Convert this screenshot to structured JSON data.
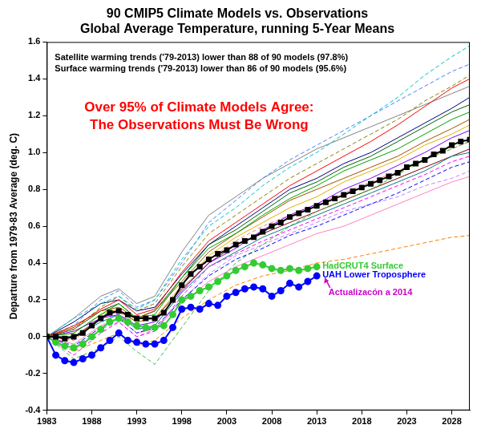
{
  "chart_data": {
    "type": "line",
    "title": [
      "90 CMIP5 Climate Models vs. Observations",
      "Global Average Temperature, running 5-Year Means"
    ],
    "subtitle": [
      "Satellite warming trends ('79-2013) lower than 88 of 90 models (97.8%)",
      "Surface warming trends ('79-2013) lower than 86 of 90 models (95.6%)"
    ],
    "annotations": [
      {
        "text": "Over 95% of Climate Models Agree:",
        "color": "#ff0000"
      },
      {
        "text": "The Observations Must Be Wrong",
        "color": "#ff0000"
      },
      {
        "text": "Actualizacón a 2014",
        "color": "#cc00cc"
      }
    ],
    "y_label": "Departure from 1979-83 Average (deg. C)",
    "xlim": [
      1983,
      2030
    ],
    "xticks": [
      1983,
      1988,
      1993,
      1998,
      2003,
      2008,
      2013,
      2018,
      2023,
      2028
    ],
    "ylim": [
      -0.4,
      1.6
    ],
    "yticks": [
      -0.4,
      -0.2,
      {
        "value": 0,
        "label": "0.0"
      },
      0.2,
      0.4,
      0.6,
      0.8,
      {
        "value": 1,
        "label": "1.0"
      },
      1.2,
      1.4,
      1.6
    ],
    "grid": false,
    "x": [
      1983,
      1986,
      1989,
      1991,
      1993,
      1995,
      1998,
      2001,
      2004,
      2007,
      2010,
      2013,
      2016,
      2019,
      2022,
      2025,
      2028,
      2030
    ],
    "series": [
      {
        "color": "#ff0000",
        "values": [
          0,
          0.05,
          0.15,
          0.2,
          0.12,
          0.15,
          0.35,
          0.52,
          0.62,
          0.72,
          0.82,
          0.9,
          0.98,
          1.06,
          1.15,
          1.25,
          1.35,
          1.4
        ]
      },
      {
        "color": "#0000ff",
        "line_style": "dashed",
        "values": [
          0,
          -0.05,
          0.05,
          0.1,
          0.02,
          0.05,
          0.2,
          0.33,
          0.42,
          0.48,
          0.55,
          0.6,
          0.66,
          0.72,
          0.78,
          0.85,
          0.92,
          0.95
        ]
      },
      {
        "color": "#00a000",
        "values": [
          0,
          0.02,
          0.12,
          0.18,
          0.1,
          0.12,
          0.32,
          0.48,
          0.56,
          0.66,
          0.75,
          0.82,
          0.9,
          0.96,
          1.02,
          1.1,
          1.18,
          1.22
        ]
      },
      {
        "color": "#00c0c0",
        "line_style": "dashed",
        "values": [
          0,
          0.1,
          0.18,
          0.22,
          0.15,
          0.2,
          0.42,
          0.6,
          0.7,
          0.82,
          0.92,
          1.0,
          1.1,
          1.2,
          1.3,
          1.42,
          1.52,
          1.58
        ]
      },
      {
        "color": "#ff8000",
        "line_style": "dashed",
        "values": [
          0,
          -0.08,
          -0.02,
          0.02,
          -0.05,
          -0.02,
          0.1,
          0.2,
          0.28,
          0.33,
          0.36,
          0.4,
          0.42,
          0.45,
          0.48,
          0.51,
          0.54,
          0.55
        ]
      },
      {
        "color": "#8000ff",
        "values": [
          0,
          0.03,
          0.1,
          0.12,
          0.06,
          0.08,
          0.25,
          0.4,
          0.48,
          0.58,
          0.66,
          0.72,
          0.8,
          0.86,
          0.93,
          1.0,
          1.08,
          1.12
        ]
      },
      {
        "color": "#ff00ff",
        "line_style": "dashed",
        "values": [
          0,
          -0.1,
          0.02,
          0.08,
          0.0,
          0.03,
          0.22,
          0.38,
          0.45,
          0.52,
          0.58,
          0.64,
          0.7,
          0.76,
          0.82,
          0.88,
          0.95,
          0.98
        ]
      },
      {
        "color": "#a05000",
        "values": [
          0,
          0.06,
          0.14,
          0.16,
          0.1,
          0.14,
          0.3,
          0.46,
          0.56,
          0.65,
          0.74,
          0.8,
          0.86,
          0.92,
          0.98,
          1.06,
          1.13,
          1.18
        ]
      },
      {
        "color": "#008080",
        "values": [
          0,
          0.0,
          0.08,
          0.12,
          0.04,
          0.06,
          0.24,
          0.38,
          0.46,
          0.54,
          0.6,
          0.66,
          0.72,
          0.78,
          0.84,
          0.9,
          0.98,
          1.0
        ]
      },
      {
        "color": "#808000",
        "line_style": "dashed",
        "values": [
          0,
          0.04,
          0.16,
          0.22,
          0.14,
          0.18,
          0.38,
          0.56,
          0.66,
          0.76,
          0.86,
          0.94,
          1.02,
          1.1,
          1.18,
          1.28,
          1.36,
          1.42
        ]
      },
      {
        "color": "#ff80c0",
        "values": [
          0,
          -0.04,
          0.06,
          0.1,
          0.02,
          0.04,
          0.18,
          0.3,
          0.38,
          0.44,
          0.5,
          0.56,
          0.6,
          0.66,
          0.72,
          0.78,
          0.84,
          0.87
        ]
      },
      {
        "color": "#000080",
        "values": [
          0,
          0.08,
          0.18,
          0.2,
          0.14,
          0.16,
          0.34,
          0.5,
          0.6,
          0.7,
          0.8,
          0.86,
          0.94,
          1.0,
          1.08,
          1.16,
          1.24,
          1.3
        ]
      },
      {
        "color": "#40c040",
        "line_style": "dashed",
        "values": [
          0,
          -0.12,
          -0.06,
          0.0,
          -0.08,
          -0.15,
          0.05,
          0.25,
          0.4,
          0.5,
          0.6,
          0.68,
          0.74,
          0.8,
          0.88,
          0.96,
          1.02,
          1.06
        ]
      },
      {
        "color": "#e0b000",
        "values": [
          0,
          0.02,
          0.12,
          0.15,
          0.08,
          0.1,
          0.28,
          0.44,
          0.54,
          0.62,
          0.7,
          0.76,
          0.84,
          0.9,
          0.96,
          1.04,
          1.1,
          1.15
        ]
      },
      {
        "color": "#4080ff",
        "line_style": "dashed",
        "values": [
          0,
          0.06,
          0.2,
          0.25,
          0.16,
          0.2,
          0.4,
          0.62,
          0.74,
          0.86,
          0.96,
          1.04,
          1.12,
          1.2,
          1.28,
          1.36,
          1.44,
          1.48
        ]
      },
      {
        "color": "#800000",
        "values": [
          0,
          0.0,
          0.1,
          0.14,
          0.08,
          0.1,
          0.26,
          0.4,
          0.5,
          0.56,
          0.62,
          0.68,
          0.74,
          0.8,
          0.86,
          0.92,
          0.98,
          1.02
        ]
      },
      {
        "color": "#c080ff",
        "line_style": "dashed",
        "values": [
          0,
          -0.06,
          0.04,
          0.08,
          0.0,
          0.04,
          0.2,
          0.34,
          0.44,
          0.5,
          0.56,
          0.62,
          0.68,
          0.72,
          0.76,
          0.82,
          0.86,
          0.9
        ]
      },
      {
        "color": "#006000",
        "values": [
          0,
          0.04,
          0.14,
          0.18,
          0.1,
          0.14,
          0.32,
          0.5,
          0.58,
          0.68,
          0.78,
          0.84,
          0.92,
          0.98,
          1.06,
          1.14,
          1.22,
          1.26
        ]
      },
      {
        "color": "#ff8080",
        "line_style": "dashed",
        "values": [
          0,
          -0.02,
          0.1,
          0.14,
          0.04,
          0.06,
          0.24,
          0.42,
          0.52,
          0.6,
          0.66,
          0.72,
          0.78,
          0.84,
          0.9,
          0.96,
          1.02,
          1.06
        ]
      },
      {
        "color": "#808080",
        "values": [
          0,
          0.1,
          0.22,
          0.26,
          0.18,
          0.22,
          0.46,
          0.66,
          0.76,
          0.86,
          0.94,
          1.02,
          1.08,
          1.14,
          1.2,
          1.26,
          1.32,
          1.36
        ]
      },
      {
        "color": "#000000",
        "marker": "square",
        "x": [
          1983,
          1984,
          1985,
          1986,
          1987,
          1988,
          1989,
          1990,
          1991,
          1992,
          1993,
          1994,
          1995,
          1996,
          1997,
          1998,
          1999,
          2000,
          2001,
          2002,
          2003,
          2004,
          2005,
          2006,
          2007,
          2008,
          2009,
          2010,
          2011,
          2012,
          2013,
          2014,
          2015,
          2016,
          2017,
          2018,
          2019,
          2020,
          2021,
          2022,
          2023,
          2024,
          2025,
          2026,
          2027,
          2028,
          2029,
          2030
        ],
        "values": [
          0.0,
          0.0,
          -0.01,
          0.0,
          0.02,
          0.06,
          0.1,
          0.13,
          0.14,
          0.12,
          0.1,
          0.1,
          0.1,
          0.13,
          0.2,
          0.28,
          0.34,
          0.38,
          0.42,
          0.45,
          0.47,
          0.5,
          0.52,
          0.54,
          0.57,
          0.6,
          0.62,
          0.65,
          0.67,
          0.69,
          0.71,
          0.73,
          0.75,
          0.77,
          0.79,
          0.81,
          0.83,
          0.85,
          0.87,
          0.89,
          0.92,
          0.94,
          0.96,
          0.99,
          1.01,
          1.04,
          1.06,
          1.07
        ]
      },
      {
        "name": "HadCRUT4 Surface",
        "color": "#33cc33",
        "marker": "circle",
        "x": [
          1983,
          1984,
          1985,
          1986,
          1987,
          1988,
          1989,
          1990,
          1991,
          1992,
          1993,
          1994,
          1995,
          1996,
          1997,
          1998,
          1999,
          2000,
          2001,
          2002,
          2003,
          2004,
          2005,
          2006,
          2007,
          2008,
          2009,
          2010,
          2011,
          2012,
          2013
        ],
        "values": [
          0.0,
          -0.03,
          -0.05,
          -0.06,
          -0.04,
          0.0,
          0.04,
          0.08,
          0.1,
          0.08,
          0.06,
          0.05,
          0.05,
          0.06,
          0.12,
          0.2,
          0.22,
          0.25,
          0.27,
          0.3,
          0.33,
          0.36,
          0.38,
          0.4,
          0.39,
          0.37,
          0.36,
          0.37,
          0.36,
          0.37,
          0.38
        ]
      },
      {
        "name": "UAH Lower Troposphere",
        "color": "#0000ff",
        "marker": "circle",
        "x": [
          1983,
          1984,
          1985,
          1986,
          1987,
          1988,
          1989,
          1990,
          1991,
          1992,
          1993,
          1994,
          1995,
          1996,
          1997,
          1998,
          1999,
          2000,
          2001,
          2002,
          2003,
          2004,
          2005,
          2006,
          2007,
          2008,
          2009,
          2010,
          2011,
          2012,
          2013
        ],
        "values": [
          0.0,
          -0.1,
          -0.13,
          -0.14,
          -0.12,
          -0.1,
          -0.06,
          -0.02,
          0.02,
          -0.02,
          -0.03,
          -0.04,
          -0.04,
          -0.02,
          0.05,
          0.15,
          0.16,
          0.15,
          0.18,
          0.17,
          0.22,
          0.24,
          0.26,
          0.27,
          0.26,
          0.22,
          0.25,
          0.29,
          0.27,
          0.3,
          0.33
        ]
      }
    ]
  }
}
